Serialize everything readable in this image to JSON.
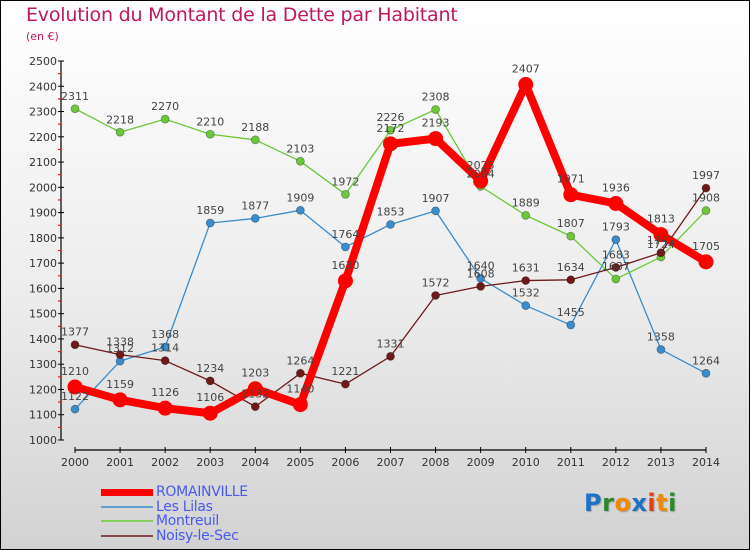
{
  "title": "Evolution du Montant de la Dette par Habitant",
  "subtitle": "(en €)",
  "logo": {
    "text": "Proxiti",
    "letters": [
      {
        "ch": "P",
        "color": "#1e72c6"
      },
      {
        "ch": "r",
        "color": "#2a8a2a"
      },
      {
        "ch": "o",
        "color": "#f08a00"
      },
      {
        "ch": "x",
        "color": "#1e72c6"
      },
      {
        "ch": "i",
        "color": "#e0401a"
      },
      {
        "ch": "t",
        "color": "#f08a00"
      },
      {
        "ch": "i",
        "color": "#2a8a2a"
      }
    ]
  },
  "chart_data": {
    "type": "line",
    "title": "Evolution du Montant de la Dette par Habitant",
    "subtitle": "(en €)",
    "xlabel": "",
    "ylabel": "",
    "x": [
      2000,
      2001,
      2002,
      2003,
      2004,
      2005,
      2006,
      2007,
      2008,
      2009,
      2010,
      2011,
      2012,
      2013,
      2014
    ],
    "ylim": [
      1000,
      2500
    ],
    "yticks": [
      1000,
      1100,
      1200,
      1300,
      1400,
      1500,
      1600,
      1700,
      1800,
      1900,
      2000,
      2100,
      2200,
      2300,
      2400,
      2500
    ],
    "grid": false,
    "legend_position": "bottom-left",
    "series": [
      {
        "name": "ROMAINVILLE",
        "color": "#ff0000",
        "emphasis": true,
        "values": [
          1210,
          1159,
          1126,
          1106,
          1203,
          1140,
          1630,
          2172,
          2193,
          2025,
          2407,
          1971,
          1936,
          1813,
          1705
        ]
      },
      {
        "name": "Les Lilas",
        "color": "#3a8ccc",
        "values": [
          1122,
          1312,
          1368,
          1859,
          1877,
          1909,
          1764,
          1853,
          1907,
          1640,
          1532,
          1455,
          1793,
          1358,
          1264
        ]
      },
      {
        "name": "Montreuil",
        "color": "#6cc83a",
        "values": [
          2311,
          2218,
          2270,
          2210,
          2188,
          2103,
          1972,
          2226,
          2308,
          2004,
          1889,
          1807,
          1637,
          1724,
          1908
        ]
      },
      {
        "name": "Noisy-le-Sec",
        "color": "#6e1a1a",
        "values": [
          1377,
          1338,
          1314,
          1234,
          1132,
          1264,
          1221,
          1331,
          1572,
          1608,
          1631,
          1634,
          1683,
          1741,
          1997
        ]
      }
    ]
  }
}
